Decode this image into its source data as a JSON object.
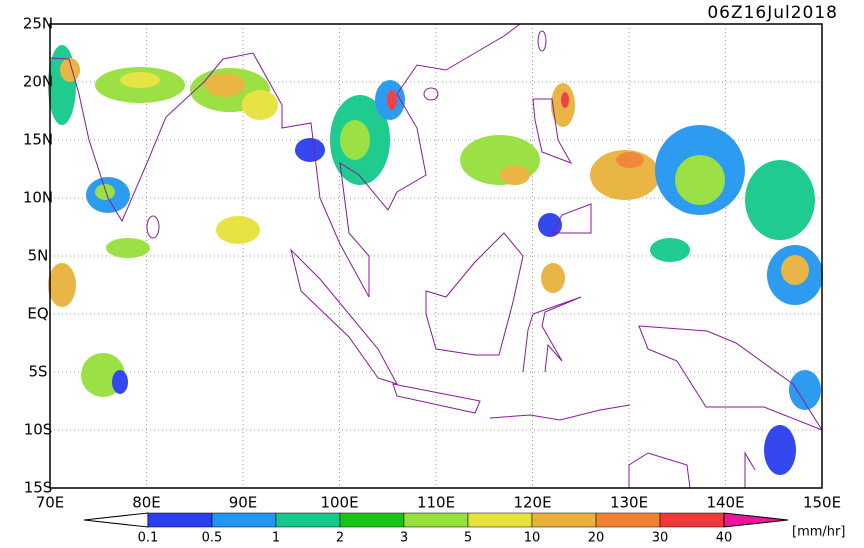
{
  "title": "06Z16Jul2018",
  "lat_labels": [
    "25N",
    "20N",
    "15N",
    "10N",
    "5N",
    "EQ",
    "5S",
    "10S",
    "15S"
  ],
  "lon_labels": [
    "70E",
    "80E",
    "90E",
    "100E",
    "110E",
    "120E",
    "130E",
    "140E",
    "150E"
  ],
  "colorbar": {
    "levels": [
      0.1,
      0.5,
      1,
      2,
      3,
      5,
      10,
      20,
      30,
      40
    ],
    "colors": [
      "#ffffff",
      "#2a3ff0",
      "#2196f0",
      "#14c98a",
      "#18c418",
      "#96e03c",
      "#e6e23c",
      "#e8b23c",
      "#f08232",
      "#f03a3a",
      "#f0149b"
    ],
    "unit": "[mm/hr]"
  }
}
